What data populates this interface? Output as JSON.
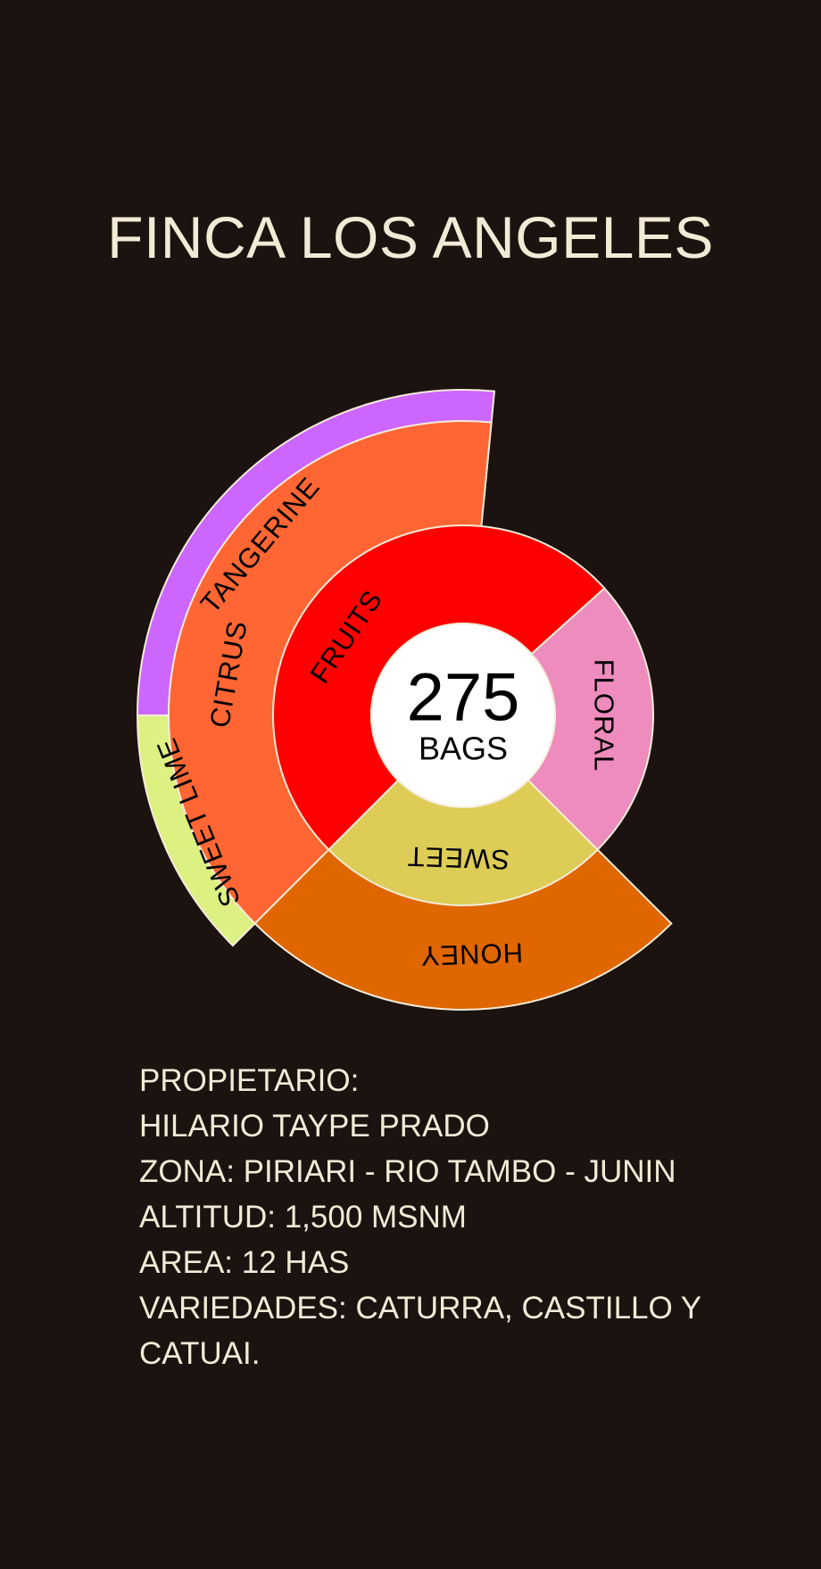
{
  "title": "FINCA LOS ANGELES",
  "chart_data": {
    "type": "sunburst",
    "center": {
      "value": "275",
      "unit": "BAGS"
    },
    "inner_ring": [
      {
        "label": "FRUITS",
        "color": "#ff0000",
        "share_deg": 180
      },
      {
        "label": "FLORAL",
        "color": "#ee8cbd",
        "share_deg": 90
      },
      {
        "label": "SWEET",
        "color": "#ddcc55",
        "share_deg": 90
      }
    ],
    "middle_ring": [
      {
        "label": "CITRUS",
        "parent": "FRUITS",
        "color": "#ff6633"
      },
      {
        "label": "HONEY",
        "parent": "SWEET",
        "color": "#e06600"
      }
    ],
    "outer_ring": [
      {
        "label": "TANGERINE",
        "parent": "CITRUS",
        "color": "#cc66ff"
      },
      {
        "label": "SWEET LIME",
        "parent": "CITRUS",
        "color": "#ddf082"
      }
    ]
  },
  "info": {
    "lines": [
      "PROPIETARIO:",
      "HILARIO TAYPE PRADO",
      "ZONA: PIRIARI - RIO TAMBO - JUNIN",
      "ALTITUD: 1,500 MSNM",
      "AREA: 12 HAS",
      "VARIEDADES: CATURRA, CASTILLO Y CATUAI."
    ]
  }
}
